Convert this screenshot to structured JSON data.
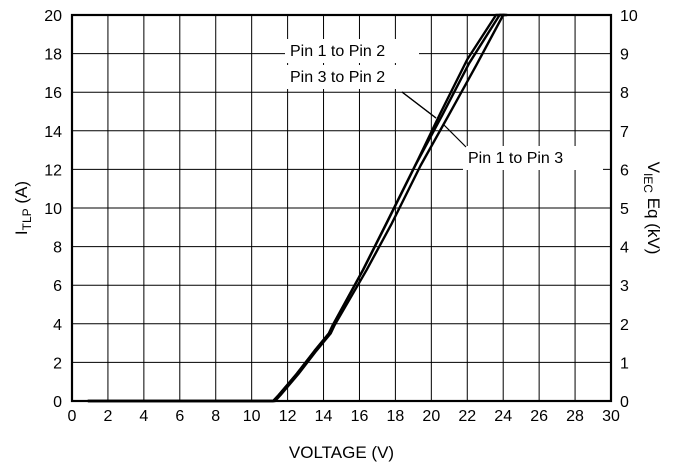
{
  "chart_data": {
    "type": "line",
    "xlabel": "VOLTAGE (V)",
    "ylabel": {
      "main": "I",
      "sub": "TLP",
      "unit": " (A)"
    },
    "y2label": {
      "main": "V",
      "sub": "IEC",
      "unit": " Eq (kV)"
    },
    "xlim": [
      0,
      30
    ],
    "ylim": [
      0,
      20
    ],
    "y2lim": [
      0,
      10
    ],
    "grid": true,
    "x_ticks": [
      "0",
      "2",
      "4",
      "6",
      "8",
      "10",
      "12",
      "14",
      "16",
      "18",
      "20",
      "22",
      "24",
      "26",
      "28",
      "30"
    ],
    "y_ticks": [
      "0",
      "2",
      "4",
      "6",
      "8",
      "10",
      "12",
      "14",
      "16",
      "18",
      "20"
    ],
    "y2_ticks": [
      "0",
      "1",
      "2",
      "3",
      "4",
      "5",
      "6",
      "7",
      "8",
      "9",
      "10"
    ],
    "series": [
      {
        "name": "Pin 1 to Pin 2",
        "x": [
          0.9,
          11.2,
          11.5,
          12.5,
          13.5,
          14.3,
          14.5,
          16.2,
          17.5,
          19.1,
          20.5,
          22.0,
          23.6,
          24.0
        ],
        "y": [
          0,
          0,
          0.3,
          1.4,
          2.6,
          3.5,
          3.9,
          6.8,
          9.2,
          12.2,
          14.9,
          17.7,
          20.0,
          20.0
        ]
      },
      {
        "name": "Pin 3 to Pin 2",
        "x": [
          0.9,
          11.2,
          11.5,
          12.5,
          13.5,
          14.3,
          14.5,
          16.2,
          17.5,
          19.1,
          20.6,
          22.1,
          23.8,
          24.1
        ],
        "y": [
          0,
          0,
          0.3,
          1.4,
          2.6,
          3.5,
          3.9,
          6.8,
          9.2,
          12.2,
          14.8,
          17.5,
          20.0,
          20.0
        ]
      },
      {
        "name": "Pin 1 to Pin 3",
        "x": [
          0.9,
          11.3,
          11.6,
          12.6,
          13.6,
          14.4,
          14.6,
          16.4,
          17.8,
          19.4,
          20.9,
          22.5,
          24.0,
          24.2
        ],
        "y": [
          0,
          0,
          0.3,
          1.4,
          2.6,
          3.5,
          3.9,
          6.8,
          9.2,
          12.2,
          14.7,
          17.4,
          20.0,
          20.0
        ]
      }
    ],
    "annotations": [
      {
        "text": "Pin 1 to Pin 2",
        "placement": "upper-middle"
      },
      {
        "text": "Pin 3 to Pin 2",
        "placement": "upper-middle"
      },
      {
        "text": "Pin 1 to Pin 3",
        "placement": "right"
      }
    ]
  }
}
